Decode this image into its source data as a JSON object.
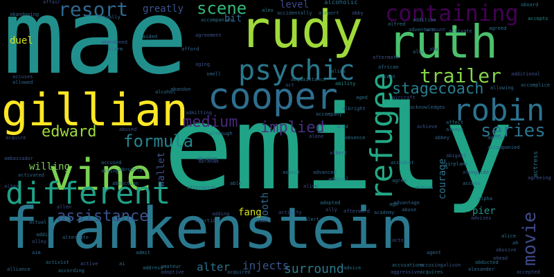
{
  "words": [
    {
      "text": "emily",
      "color": "#20a386",
      "vertical": false
    },
    {
      "text": "mae",
      "color": "#21908d",
      "vertical": false
    },
    {
      "text": "frankenstein",
      "color": "#2a788e",
      "vertical": false
    },
    {
      "text": "rudy",
      "color": "#a0da39",
      "vertical": false
    },
    {
      "text": "gillian",
      "color": "#fde725",
      "vertical": false
    },
    {
      "text": "ruth",
      "color": "#4ac16d",
      "vertical": false
    },
    {
      "text": "vine",
      "color": "#7ad151",
      "vertical": false
    },
    {
      "text": "cooper",
      "color": "#2e6e8e",
      "vertical": false
    },
    {
      "text": "different",
      "color": "#1fa187",
      "vertical": false
    },
    {
      "text": "robin",
      "color": "#2c728e",
      "vertical": false
    },
    {
      "text": "refugee",
      "color": "#22a884",
      "vertical": true
    },
    {
      "text": "psychic",
      "color": "#2a788e",
      "vertical": false
    },
    {
      "text": "containing",
      "color": "#440154",
      "vertical": false
    },
    {
      "text": "resort",
      "color": "#31688e",
      "vertical": false
    },
    {
      "text": "trailer",
      "color": "#84d44b",
      "vertical": false
    },
    {
      "text": "stagecoach",
      "color": "#287d8e",
      "vertical": false
    },
    {
      "text": "series",
      "color": "#2c738e",
      "vertical": false
    },
    {
      "text": "edward",
      "color": "#a0da39",
      "vertical": false
    },
    {
      "text": "formula",
      "color": "#25858e",
      "vertical": false
    },
    {
      "text": "medium",
      "color": "#482878",
      "vertical": false
    },
    {
      "text": "implied",
      "color": "#46327e",
      "vertical": false
    },
    {
      "text": "assistance",
      "color": "#3b528b",
      "vertical": false
    },
    {
      "text": "scene",
      "color": "#35b779",
      "vertical": false
    },
    {
      "text": "movie",
      "color": "#3e4989",
      "vertical": true
    },
    {
      "text": "surround",
      "color": "#297b8e",
      "vertical": false
    },
    {
      "text": "injects",
      "color": "#39568c",
      "vertical": false
    },
    {
      "text": "alter",
      "color": "#2c728e",
      "vertical": false
    },
    {
      "text": "willing",
      "color": "#7ad151",
      "vertical": false
    },
    {
      "text": "greatly",
      "color": "#3a548c",
      "vertical": false
    },
    {
      "text": "level",
      "color": "#3e4989",
      "vertical": false
    },
    {
      "text": "bit",
      "color": "#31688e",
      "vertical": false
    },
    {
      "text": "courage",
      "color": "#2c728e",
      "vertical": true
    },
    {
      "text": "booth",
      "color": "#31688e",
      "vertical": true
    },
    {
      "text": "wallet",
      "color": "#3b528b",
      "vertical": true
    },
    {
      "text": "pier",
      "color": "#21918c",
      "vertical": false
    },
    {
      "text": "fang",
      "color": "#d8e219",
      "vertical": false
    },
    {
      "text": "duel",
      "color": "#d8e219",
      "vertical": false
    },
    {
      "text": "alcoholic",
      "color": "#2c728e",
      "vertical": false
    },
    {
      "text": "abandoned",
      "color": "#3b528b",
      "vertical": false
    },
    {
      "text": "afford",
      "color": "#31688e",
      "vertical": false
    },
    {
      "text": "accompanies",
      "color": "#2c728e",
      "vertical": false
    },
    {
      "text": "airport",
      "color": "#31688e",
      "vertical": false
    },
    {
      "text": "alex",
      "color": "#287d8e",
      "vertical": false
    },
    {
      "text": "abby",
      "color": "#3b528b",
      "vertical": false
    },
    {
      "text": "aboard",
      "color": "#2c728e",
      "vertical": false
    },
    {
      "text": "abandoning",
      "color": "#31688e",
      "vertical": false
    },
    {
      "text": "affair",
      "color": "#3b528b",
      "vertical": false
    },
    {
      "text": "actually",
      "color": "#31688e",
      "vertical": false
    },
    {
      "text": "alfred",
      "color": "#2c728e",
      "vertical": false
    },
    {
      "text": "accepts",
      "color": "#21918c",
      "vertical": false
    },
    {
      "text": "alec",
      "color": "#2c728e",
      "vertical": false
    },
    {
      "text": "aging",
      "color": "#3b528b",
      "vertical": false
    },
    {
      "text": "alarm",
      "color": "#31688e",
      "vertical": false
    },
    {
      "text": "smell",
      "color": "#31688e",
      "vertical": false
    },
    {
      "text": "african",
      "color": "#2c728e",
      "vertical": false
    },
    {
      "text": "aftermath",
      "color": "#3b528b",
      "vertical": false
    },
    {
      "text": "accept",
      "color": "#31688e",
      "vertical": false
    },
    {
      "text": "ability",
      "color": "#21918c",
      "vertical": false
    },
    {
      "text": "aged",
      "color": "#2c728e",
      "vertical": false
    },
    {
      "text": "additional",
      "color": "#3b528b",
      "vertical": false
    },
    {
      "text": "allowing",
      "color": "#31688e",
      "vertical": false
    },
    {
      "text": "accomplice",
      "color": "#2c728e",
      "vertical": false
    },
    {
      "text": "accuses",
      "color": "#3b528b",
      "vertical": false
    },
    {
      "text": "allowed",
      "color": "#31688e",
      "vertical": false
    },
    {
      "text": "alcohol",
      "color": "#2c728e",
      "vertical": false
    },
    {
      "text": "abandon",
      "color": "#31688e",
      "vertical": false
    },
    {
      "text": "admitting",
      "color": "#3b528b",
      "vertical": false
    },
    {
      "text": "acquaintance",
      "color": "#2c728e",
      "vertical": false
    },
    {
      "text": "albright",
      "color": "#31688e",
      "vertical": false
    },
    {
      "text": "aircraft",
      "color": "#3b528b",
      "vertical": false
    },
    {
      "text": "acknowledges",
      "color": "#31688e",
      "vertical": false
    },
    {
      "text": "accompany",
      "color": "#2c728e",
      "vertical": false
    },
    {
      "text": "achieve",
      "color": "#3b528b",
      "vertical": false
    },
    {
      "text": "abbey",
      "color": "#31688e",
      "vertical": false
    },
    {
      "text": "abused",
      "color": "#3b528b",
      "vertical": false
    },
    {
      "text": "agency",
      "color": "#2c728e",
      "vertical": false
    },
    {
      "text": "always",
      "color": "#31688e",
      "vertical": false
    },
    {
      "text": "affect",
      "color": "#2c728e",
      "vertical": false
    },
    {
      "text": "ambassador",
      "color": "#3b528b",
      "vertical": false
    },
    {
      "text": "abraham",
      "color": "#31688e",
      "vertical": false
    },
    {
      "text": "accident",
      "color": "#2c728e",
      "vertical": false
    },
    {
      "text": "abigail",
      "color": "#3b528b",
      "vertical": false
    },
    {
      "text": "accompanied",
      "color": "#31688e",
      "vertical": false
    },
    {
      "text": "airplane",
      "color": "#2c728e",
      "vertical": false
    },
    {
      "text": "alongside",
      "color": "#3b528b",
      "vertical": false
    },
    {
      "text": "activated",
      "color": "#31688e",
      "vertical": false
    },
    {
      "text": "abduction",
      "color": "#2c728e",
      "vertical": false
    },
    {
      "text": "alive",
      "color": "#3b528b",
      "vertical": false
    },
    {
      "text": "agree",
      "color": "#31688e",
      "vertical": false
    },
    {
      "text": "actress",
      "color": "#2c728e",
      "vertical": true
    },
    {
      "text": "agreeing",
      "color": "#3b528b",
      "vertical": false
    },
    {
      "text": "advantage",
      "color": "#31688e",
      "vertical": false
    },
    {
      "text": "access",
      "color": "#2c728e",
      "vertical": false
    },
    {
      "text": "allen",
      "color": "#3b528b",
      "vertical": false
    },
    {
      "text": "afterwards",
      "color": "#31688e",
      "vertical": false
    },
    {
      "text": "adopted",
      "color": "#2c728e",
      "vertical": false
    },
    {
      "text": "ally",
      "color": "#3b528b",
      "vertical": false
    },
    {
      "text": "abuse",
      "color": "#31688e",
      "vertical": false
    },
    {
      "text": "alpha",
      "color": "#2c728e",
      "vertical": false
    },
    {
      "text": "adding",
      "color": "#3b528b",
      "vertical": false
    },
    {
      "text": "abortion",
      "color": "#31688e",
      "vertical": false
    },
    {
      "text": "alert",
      "color": "#2c728e",
      "vertical": false
    },
    {
      "text": "afterward",
      "color": "#3b528b",
      "vertical": false
    },
    {
      "text": "academy",
      "color": "#31688e",
      "vertical": false
    },
    {
      "text": "ago",
      "color": "#2c728e",
      "vertical": false
    },
    {
      "text": "advises",
      "color": "#3b528b",
      "vertical": false
    },
    {
      "text": "actual",
      "color": "#31688e",
      "vertical": false
    },
    {
      "text": "addict",
      "color": "#2c728e",
      "vertical": false
    },
    {
      "text": "alley",
      "color": "#3b528b",
      "vertical": false
    },
    {
      "text": "alternate",
      "color": "#31688e",
      "vertical": false
    },
    {
      "text": "admit",
      "color": "#2c728e",
      "vertical": false
    },
    {
      "text": "actor",
      "color": "#3b528b",
      "vertical": false
    },
    {
      "text": "agent",
      "color": "#31688e",
      "vertical": false
    },
    {
      "text": "alice",
      "color": "#2c728e",
      "vertical": false
    },
    {
      "text": "abusive",
      "color": "#3b528b",
      "vertical": false
    },
    {
      "text": "aim",
      "color": "#31688e",
      "vertical": false
    },
    {
      "text": "activist",
      "color": "#2c728e",
      "vertical": false
    },
    {
      "text": "active",
      "color": "#3b528b",
      "vertical": false
    },
    {
      "text": "ai",
      "color": "#31688e",
      "vertical": false
    },
    {
      "text": "address",
      "color": "#2c728e",
      "vertical": false
    },
    {
      "text": "adoptive",
      "color": "#3b528b",
      "vertical": false
    },
    {
      "text": "acquired",
      "color": "#31688e",
      "vertical": false
    },
    {
      "text": "advice",
      "color": "#2c728e",
      "vertical": false
    },
    {
      "text": "aggressive",
      "color": "#3b528b",
      "vertical": false
    },
    {
      "text": "accusing",
      "color": "#31688e",
      "vertical": false
    },
    {
      "text": "acquires",
      "color": "#2c728e",
      "vertical": false
    },
    {
      "text": "alison",
      "color": "#3b528b",
      "vertical": false
    },
    {
      "text": "alexander",
      "color": "#31688e",
      "vertical": false
    },
    {
      "text": "abducted",
      "color": "#2c728e",
      "vertical": false
    },
    {
      "text": "accepted",
      "color": "#3b528b",
      "vertical": false
    },
    {
      "text": "alliance",
      "color": "#31688e",
      "vertical": false
    },
    {
      "text": "according",
      "color": "#2c728e",
      "vertical": false
    },
    {
      "text": "ahead",
      "color": "#3b528b",
      "vertical": false
    },
    {
      "text": "ah",
      "color": "#31688e",
      "vertical": false
    },
    {
      "text": "adventure",
      "color": "#2c728e",
      "vertical": false
    },
    {
      "text": "account",
      "color": "#3b528b",
      "vertical": false
    },
    {
      "text": "activate",
      "color": "#31688e",
      "vertical": false
    },
    {
      "text": "agreed",
      "color": "#2c728e",
      "vertical": false
    },
    {
      "text": "abu",
      "color": "#3b528b",
      "vertical": false
    },
    {
      "text": "addition",
      "color": "#31688e",
      "vertical": false
    },
    {
      "text": "aided",
      "color": "#2c728e",
      "vertical": false
    },
    {
      "text": "agreement",
      "color": "#3b528b",
      "vertical": false
    },
    {
      "text": "accidentally",
      "color": "#31688e",
      "vertical": false
    },
    {
      "text": "alias",
      "color": "#2c728e",
      "vertical": false
    },
    {
      "text": "act",
      "color": "#3b528b",
      "vertical": false
    },
    {
      "text": "acid",
      "color": "#31688e",
      "vertical": false
    },
    {
      "text": "absence",
      "color": "#2c728e",
      "vertical": false
    },
    {
      "text": "albert",
      "color": "#3b528b",
      "vertical": false
    },
    {
      "text": "advanced",
      "color": "#31688e",
      "vertical": false
    },
    {
      "text": "admiral",
      "color": "#2c728e",
      "vertical": false
    },
    {
      "text": "alone",
      "color": "#3b528b",
      "vertical": false
    },
    {
      "text": "although",
      "color": "#31688e",
      "vertical": false
    },
    {
      "text": "able",
      "color": "#2c728e",
      "vertical": false
    },
    {
      "text": "activity",
      "color": "#3b528b",
      "vertical": false
    },
    {
      "text": "action",
      "color": "#31688e",
      "vertical": false
    },
    {
      "text": "accusations",
      "color": "#2c728e",
      "vertical": false
    },
    {
      "text": "altar",
      "color": "#3b528b",
      "vertical": false
    },
    {
      "text": "acting",
      "color": "#31688e",
      "vertical": false
    },
    {
      "text": "abruptly",
      "color": "#2c728e",
      "vertical": false
    },
    {
      "text": "acquire",
      "color": "#3b528b",
      "vertical": false
    },
    {
      "text": "accused",
      "color": "#31688e",
      "vertical": false
    },
    {
      "text": "aspect",
      "color": "#2c728e",
      "vertical": false
    },
    {
      "text": "abraham",
      "color": "#3b528b",
      "vertical": false
    },
    {
      "text": "adam",
      "color": "#31688e",
      "vertical": false
    },
    {
      "text": "amateur",
      "color": "#2c728e",
      "vertical": false
    }
  ]
}
